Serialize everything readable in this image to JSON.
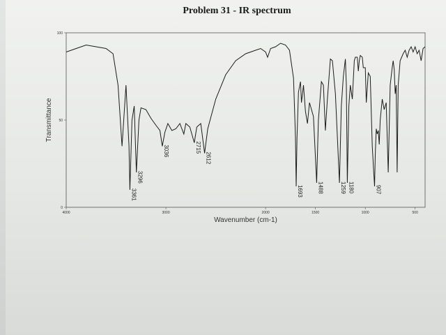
{
  "chart_data": {
    "type": "line",
    "title": "Problem 31 - IR spectrum",
    "xlabel": "Wavenumber (cm-1)",
    "ylabel": "Transmittance",
    "xlim": [
      4000,
      400
    ],
    "ylim": [
      0,
      100
    ],
    "x_axis_reversed": true,
    "grid": false,
    "x_ticks": [
      {
        "value": 4000,
        "label": "4000"
      },
      {
        "value": 3000,
        "label": "3000"
      },
      {
        "value": 2000,
        "label": "2000"
      },
      {
        "value": 1500,
        "label": "1500"
      },
      {
        "value": 1000,
        "label": "1000"
      },
      {
        "value": 500,
        "label": "500"
      }
    ],
    "y_ticks": [
      {
        "value": 0,
        "label": "0"
      },
      {
        "value": 50,
        "label": "50"
      },
      {
        "value": 100,
        "label": "100"
      }
    ],
    "series": [
      {
        "points": [
          [
            4000,
            89
          ],
          [
            3900,
            91
          ],
          [
            3800,
            93
          ],
          [
            3700,
            92
          ],
          [
            3600,
            91
          ],
          [
            3530,
            88
          ],
          [
            3480,
            70
          ],
          [
            3440,
            35
          ],
          [
            3400,
            70
          ],
          [
            3370,
            35
          ],
          [
            3361,
            10
          ],
          [
            3340,
            50
          ],
          [
            3318,
            58
          ],
          [
            3296,
            20
          ],
          [
            3270,
            50
          ],
          [
            3250,
            57
          ],
          [
            3200,
            56
          ],
          [
            3150,
            51
          ],
          [
            3100,
            47
          ],
          [
            3060,
            44
          ],
          [
            3036,
            35
          ],
          [
            3010,
            43
          ],
          [
            2980,
            48
          ],
          [
            2940,
            44
          ],
          [
            2900,
            45
          ],
          [
            2860,
            48
          ],
          [
            2820,
            42
          ],
          [
            2800,
            48
          ],
          [
            2760,
            46
          ],
          [
            2715,
            37
          ],
          [
            2690,
            46
          ],
          [
            2650,
            48
          ],
          [
            2612,
            31
          ],
          [
            2580,
            45
          ],
          [
            2500,
            62
          ],
          [
            2400,
            76
          ],
          [
            2300,
            84
          ],
          [
            2200,
            88
          ],
          [
            2100,
            90
          ],
          [
            2050,
            91
          ],
          [
            2000,
            89
          ],
          [
            1980,
            86
          ],
          [
            1950,
            91
          ],
          [
            1900,
            92
          ],
          [
            1850,
            94
          ],
          [
            1800,
            93
          ],
          [
            1760,
            90
          ],
          [
            1720,
            74
          ],
          [
            1700,
            40
          ],
          [
            1693,
            12
          ],
          [
            1685,
            40
          ],
          [
            1670,
            66
          ],
          [
            1650,
            72
          ],
          [
            1640,
            60
          ],
          [
            1620,
            70
          ],
          [
            1600,
            55
          ],
          [
            1580,
            48
          ],
          [
            1560,
            60
          ],
          [
            1520,
            52
          ],
          [
            1488,
            14
          ],
          [
            1470,
            50
          ],
          [
            1440,
            72
          ],
          [
            1420,
            70
          ],
          [
            1400,
            44
          ],
          [
            1380,
            62
          ],
          [
            1350,
            85
          ],
          [
            1330,
            84
          ],
          [
            1300,
            65
          ],
          [
            1259,
            14
          ],
          [
            1240,
            58
          ],
          [
            1220,
            75
          ],
          [
            1200,
            85
          ],
          [
            1190,
            70
          ],
          [
            1180,
            14
          ],
          [
            1165,
            58
          ],
          [
            1150,
            70
          ],
          [
            1130,
            62
          ],
          [
            1110,
            84
          ],
          [
            1100,
            86
          ],
          [
            1080,
            86
          ],
          [
            1070,
            78
          ],
          [
            1060,
            84
          ],
          [
            1050,
            87
          ],
          [
            1030,
            86
          ],
          [
            1020,
            80
          ],
          [
            1000,
            80
          ],
          [
            990,
            60
          ],
          [
            970,
            77
          ],
          [
            950,
            75
          ],
          [
            930,
            35
          ],
          [
            915,
            20
          ],
          [
            907,
            12
          ],
          [
            900,
            30
          ],
          [
            890,
            45
          ],
          [
            880,
            42
          ],
          [
            870,
            44
          ],
          [
            860,
            36
          ],
          [
            850,
            50
          ],
          [
            830,
            62
          ],
          [
            810,
            56
          ],
          [
            790,
            60
          ],
          [
            770,
            20
          ],
          [
            750,
            70
          ],
          [
            730,
            80
          ],
          [
            720,
            84
          ],
          [
            710,
            79
          ],
          [
            700,
            65
          ],
          [
            690,
            70
          ],
          [
            680,
            20
          ],
          [
            670,
            70
          ],
          [
            650,
            84
          ],
          [
            620,
            88
          ],
          [
            600,
            90
          ],
          [
            580,
            86
          ],
          [
            560,
            90
          ],
          [
            540,
            92
          ],
          [
            520,
            89
          ],
          [
            500,
            92
          ],
          [
            480,
            88
          ],
          [
            460,
            90
          ],
          [
            440,
            84
          ],
          [
            420,
            91
          ],
          [
            400,
            92
          ]
        ]
      }
    ],
    "annotations": [
      {
        "x": 3361,
        "y": 10,
        "label": "3361"
      },
      {
        "x": 3296,
        "y": 20,
        "label": "3296"
      },
      {
        "x": 3036,
        "y": 35,
        "label": "3036"
      },
      {
        "x": 2715,
        "y": 37,
        "label": "2715"
      },
      {
        "x": 2612,
        "y": 31,
        "label": "2612"
      },
      {
        "x": 1693,
        "y": 12,
        "label": "1693"
      },
      {
        "x": 1488,
        "y": 14,
        "label": "1488"
      },
      {
        "x": 1259,
        "y": 14,
        "label": "1259"
      },
      {
        "x": 1180,
        "y": 14,
        "label": "1180"
      },
      {
        "x": 907,
        "y": 12,
        "label": "907"
      }
    ]
  }
}
